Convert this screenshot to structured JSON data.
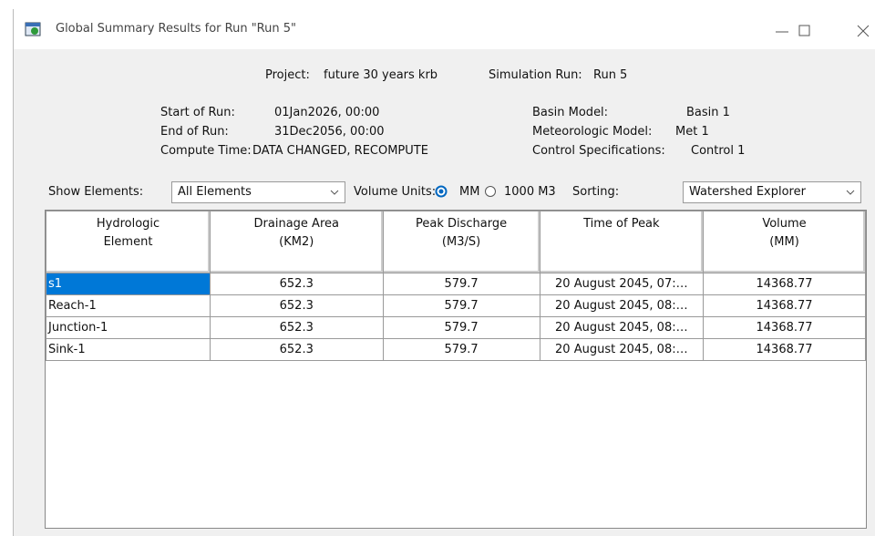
{
  "window": {
    "title": "Global Summary Results for Run \"Run 5\""
  },
  "header": {
    "project": {
      "label": "Project:",
      "value": "future 30 years krb"
    },
    "simulation_run": {
      "label": "Simulation Run:",
      "value": "Run 5"
    },
    "start_of_run": {
      "label": "Start of Run:",
      "value": "01Jan2026, 00:00"
    },
    "end_of_run": {
      "label": "End of Run:",
      "value": "31Dec2056, 00:00"
    },
    "compute_time": {
      "label": "Compute Time:",
      "value": "DATA CHANGED, RECOMPUTE"
    },
    "basin_model": {
      "label": "Basin Model:",
      "value": "Basin 1"
    },
    "meteorologic_model": {
      "label": "Meteorologic Model:",
      "value": "Met 1"
    },
    "control_specifications": {
      "label": "Control Specifications:",
      "value": "Control 1"
    }
  },
  "controls": {
    "show_elements": {
      "label": "Show Elements:",
      "value": "All Elements"
    },
    "volume_units": {
      "label": "Volume Units:",
      "options": [
        "MM",
        "1000 M3"
      ],
      "selected": "MM"
    },
    "sorting": {
      "label": "Sorting:",
      "value": "Watershed Explorer"
    }
  },
  "table": {
    "columns": [
      [
        "Hydrologic",
        "Element"
      ],
      [
        "Drainage Area",
        "(KM2)"
      ],
      [
        "Peak Discharge",
        "(M3/S)"
      ],
      [
        "Time of Peak"
      ],
      [
        "Volume",
        "(MM)"
      ]
    ],
    "rows": [
      [
        "s1",
        "652.3",
        "579.7",
        "20 August 2045, 07:…",
        "14368.77"
      ],
      [
        "Reach-1",
        "652.3",
        "579.7",
        "20 August 2045, 08:…",
        "14368.77"
      ],
      [
        "Junction-1",
        "652.3",
        "579.7",
        "20 August 2045, 08:…",
        "14368.77"
      ],
      [
        "Sink-1",
        "652.3",
        "579.7",
        "20 August 2045, 08:…",
        "14368.77"
      ]
    ]
  }
}
